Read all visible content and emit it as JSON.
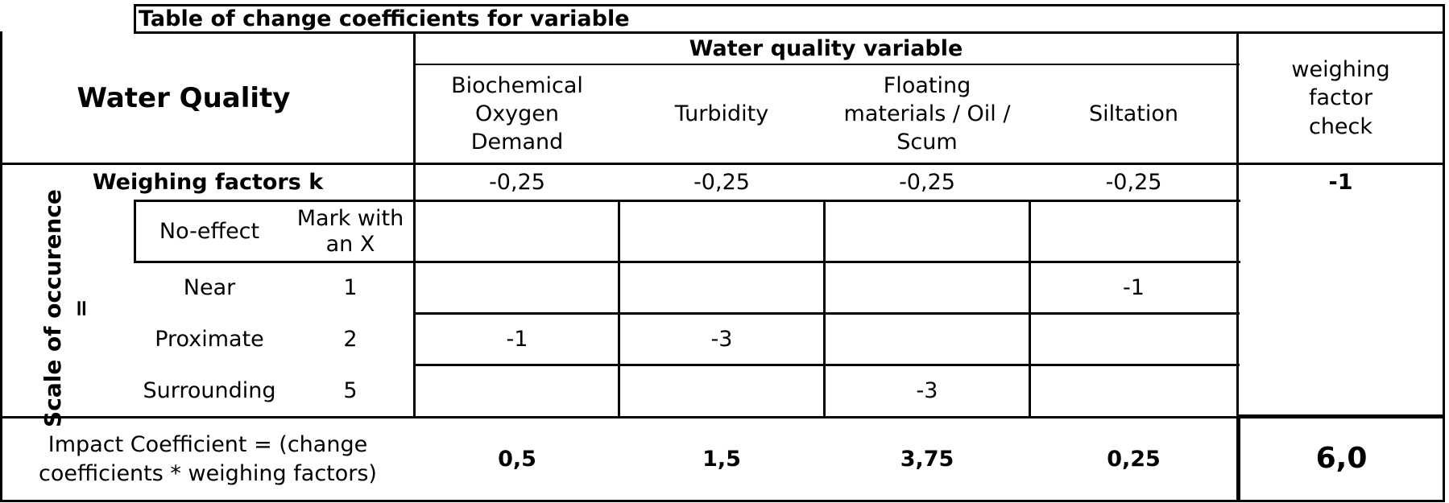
{
  "table": {
    "title": "Table of change coefficients for variable",
    "corner_title": "Water Quality",
    "group_header": "Water quality variable",
    "columns": [
      "Biochemical Oxygen Demand",
      "Turbidity",
      "Floating materials / Oil / Scum",
      "Siltation"
    ],
    "check_header": "weighing factor check",
    "weights_label": "Weighing factors k",
    "weights": [
      "-0,25",
      "-0,25",
      "-0,25",
      "-0,25"
    ],
    "weights_check": "-1",
    "scale_label": "Scale of occurence =",
    "rows": [
      {
        "label": "No-effect",
        "code": "Mark with an X",
        "cells": [
          "",
          "",
          "",
          ""
        ]
      },
      {
        "label": "Near",
        "code": "1",
        "cells": [
          "",
          "",
          "",
          "-1"
        ]
      },
      {
        "label": "Proximate",
        "code": "2",
        "cells": [
          "-1",
          "-3",
          "",
          ""
        ]
      },
      {
        "label": "Surrounding",
        "code": "5",
        "cells": [
          "",
          "",
          "-3",
          ""
        ]
      }
    ],
    "impact_label": "Impact Coefficient = (change coefficients * weighing factors)",
    "impacts": [
      "0,5",
      "1,5",
      "3,75",
      "0,25"
    ],
    "impact_total": "6,0"
  }
}
